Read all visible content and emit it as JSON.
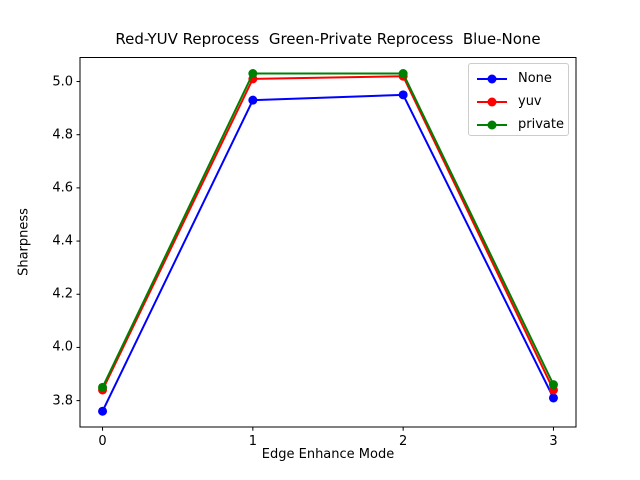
{
  "title": "Red-YUV Reprocess  Green-Private Reprocess  Blue-None",
  "chart_data": {
    "type": "line",
    "title": "Red-YUV Reprocess  Green-Private Reprocess  Blue-None",
    "xlabel": "Edge Enhance Mode",
    "ylabel": "Sharpness",
    "x": [
      0,
      1,
      2,
      3
    ],
    "series": [
      {
        "name": "None",
        "color": "#0000ff",
        "values": [
          3.76,
          4.93,
          4.95,
          3.81
        ]
      },
      {
        "name": "yuv",
        "color": "#ff0000",
        "values": [
          3.84,
          5.01,
          5.02,
          3.84
        ]
      },
      {
        "name": "private",
        "color": "#008000",
        "values": [
          3.85,
          5.03,
          5.03,
          3.86
        ]
      }
    ],
    "xticks": [
      "0",
      "1",
      "2",
      "3"
    ],
    "yticks": [
      "3.8",
      "4.0",
      "4.2",
      "4.4",
      "4.6",
      "4.8",
      "5.0"
    ],
    "xlim": [
      -0.15,
      3.15
    ],
    "ylim": [
      3.7,
      5.09
    ],
    "grid": false,
    "marker": "o",
    "legend_position": "upper right"
  },
  "colors": {
    "background": "#ffffff",
    "spine": "#000000",
    "legend_border": "#cccccc"
  }
}
